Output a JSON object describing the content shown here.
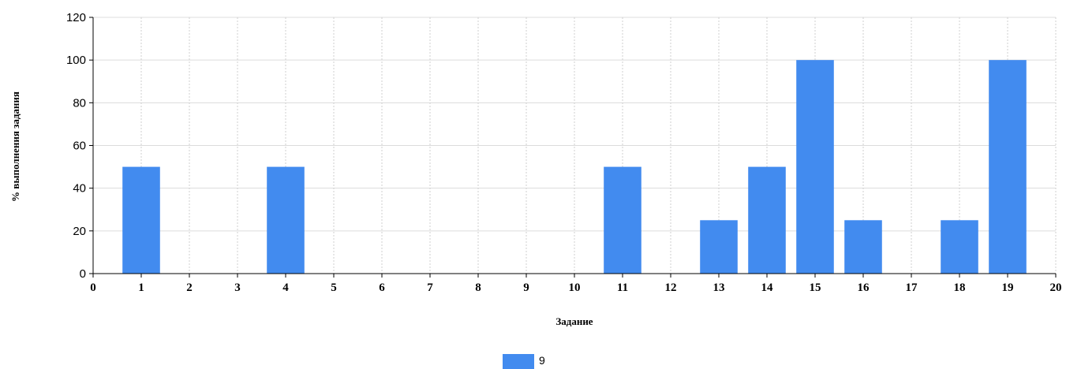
{
  "chart_data": {
    "type": "bar",
    "xlabel": "Задание",
    "ylabel": "% выполнения задания",
    "xlim": [
      0,
      20
    ],
    "ylim": [
      0,
      120
    ],
    "x_ticks": [
      0,
      1,
      2,
      3,
      4,
      5,
      6,
      7,
      8,
      9,
      10,
      11,
      12,
      13,
      14,
      15,
      16,
      17,
      18,
      19,
      20
    ],
    "y_ticks": [
      0,
      20,
      40,
      60,
      80,
      100,
      120
    ],
    "grid": true,
    "legend_position": "bottom",
    "series": [
      {
        "name": "9",
        "color": "#428bef",
        "x": [
          1,
          4,
          11,
          13,
          14,
          15,
          16,
          18,
          19
        ],
        "values": [
          50,
          50,
          50,
          25,
          50,
          100,
          25,
          25,
          100
        ]
      }
    ]
  }
}
